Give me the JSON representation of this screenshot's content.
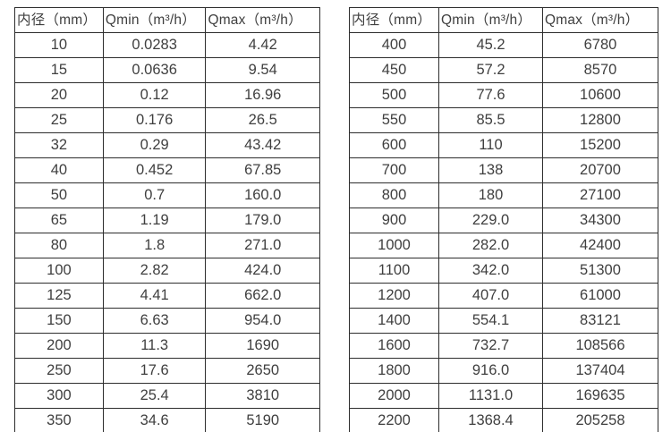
{
  "tables": [
    {
      "name": "small-diameter-flow-table",
      "headers": [
        "内径（mm）",
        "Qmin（m³/h）",
        "Qmax（m³/h）"
      ],
      "rows": [
        [
          "10",
          "0.0283",
          "4.42"
        ],
        [
          "15",
          "0.0636",
          "9.54"
        ],
        [
          "20",
          "0.12",
          "16.96"
        ],
        [
          "25",
          "0.176",
          "26.5"
        ],
        [
          "32",
          "0.29",
          "43.42"
        ],
        [
          "40",
          "0.452",
          "67.85"
        ],
        [
          "50",
          "0.7",
          "160.0"
        ],
        [
          "65",
          "1.19",
          "179.0"
        ],
        [
          "80",
          "1.8",
          "271.0"
        ],
        [
          "100",
          "2.82",
          "424.0"
        ],
        [
          "125",
          "4.41",
          "662.0"
        ],
        [
          "150",
          "6.63",
          "954.0"
        ],
        [
          "200",
          "11.3",
          "1690"
        ],
        [
          "250",
          "17.6",
          "2650"
        ],
        [
          "300",
          "25.4",
          "3810"
        ],
        [
          "350",
          "34.6",
          "5190"
        ]
      ]
    },
    {
      "name": "large-diameter-flow-table",
      "headers": [
        "内径（mm）",
        "Qmin（m³/h）",
        "Qmax（m³/h）"
      ],
      "rows": [
        [
          "400",
          "45.2",
          "6780"
        ],
        [
          "450",
          "57.2",
          "8570"
        ],
        [
          "500",
          "77.6",
          "10600"
        ],
        [
          "550",
          "85.5",
          "12800"
        ],
        [
          "600",
          "110",
          "15200"
        ],
        [
          "700",
          "138",
          "20700"
        ],
        [
          "800",
          "180",
          "27100"
        ],
        [
          "900",
          "229.0",
          "34300"
        ],
        [
          "1000",
          "282.0",
          "42400"
        ],
        [
          "1100",
          "342.0",
          "51300"
        ],
        [
          "1200",
          "407.0",
          "61000"
        ],
        [
          "1400",
          "554.1",
          "83121"
        ],
        [
          "1600",
          "732.7",
          "108566"
        ],
        [
          "1800",
          "916.0",
          "137404"
        ],
        [
          "2000",
          "1131.0",
          "169635"
        ],
        [
          "2200",
          "1368.4",
          "205258"
        ]
      ]
    }
  ]
}
